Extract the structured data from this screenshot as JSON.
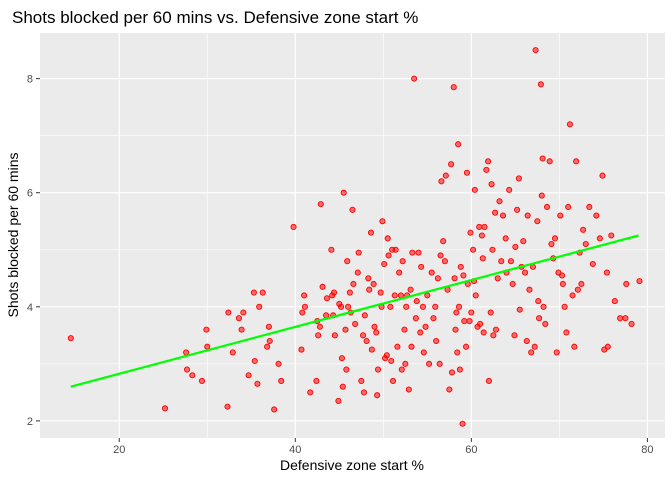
{
  "chart_data": {
    "type": "scatter",
    "title": "Shots blocked per 60 mins vs. Defensive zone start %",
    "xlabel": "Defensive zone start %",
    "ylabel": "Shots blocked per 60 mins",
    "xlim": [
      11,
      82
    ],
    "ylim": [
      1.7,
      8.8
    ],
    "xticks": [
      20,
      40,
      60,
      80
    ],
    "yticks": [
      2,
      4,
      6,
      8
    ],
    "x_tick_labels": [
      "20",
      "40",
      "60",
      "80"
    ],
    "y_tick_labels": [
      "2",
      "4",
      "6",
      "8"
    ],
    "grid": true,
    "panel_color": "#ebebeb",
    "point_color": "#ff0000",
    "trend_color": "#00ff00",
    "trend_line": {
      "x": [
        14.5,
        79
      ],
      "y": [
        2.6,
        5.25
      ]
    },
    "points": [
      [
        14.5,
        3.45
      ],
      [
        25.2,
        2.22
      ],
      [
        27.6,
        3.2
      ],
      [
        27.7,
        2.9
      ],
      [
        28.3,
        2.8
      ],
      [
        29.4,
        2.7
      ],
      [
        29.9,
        3.6
      ],
      [
        30,
        3.3
      ],
      [
        32.3,
        2.25
      ],
      [
        32.4,
        3.9
      ],
      [
        32.9,
        3.2
      ],
      [
        33.6,
        3.8
      ],
      [
        33.9,
        3.6
      ],
      [
        34.1,
        3.9
      ],
      [
        34.7,
        2.8
      ],
      [
        35.3,
        4.25
      ],
      [
        35.4,
        3.05
      ],
      [
        35.7,
        2.65
      ],
      [
        35.9,
        4.0
      ],
      [
        36.3,
        4.25
      ],
      [
        36.8,
        3.3
      ],
      [
        37,
        3.65
      ],
      [
        37.1,
        3.4
      ],
      [
        37.6,
        2.2
      ],
      [
        38.1,
        3.0
      ],
      [
        38.4,
        2.7
      ],
      [
        39.8,
        5.4
      ],
      [
        40.7,
        3.25
      ],
      [
        40.8,
        3.9
      ],
      [
        41,
        4.2
      ],
      [
        41.1,
        4.0
      ],
      [
        41.7,
        2.5
      ],
      [
        42.4,
        2.7
      ],
      [
        42.5,
        3.75
      ],
      [
        42.6,
        3.5
      ],
      [
        42.8,
        3.65
      ],
      [
        42.9,
        5.8
      ],
      [
        43.1,
        4.35
      ],
      [
        43.5,
        3.85
      ],
      [
        43.6,
        4.15
      ],
      [
        44.1,
        5.0
      ],
      [
        44.2,
        4.2
      ],
      [
        44.3,
        3.85
      ],
      [
        44.4,
        4.25
      ],
      [
        44.5,
        3.5
      ],
      [
        44.9,
        2.35
      ],
      [
        45,
        4.05
      ],
      [
        45.2,
        4.0
      ],
      [
        45.3,
        3.1
      ],
      [
        45.4,
        2.6
      ],
      [
        45.5,
        6.0
      ],
      [
        45.7,
        3.6
      ],
      [
        45.8,
        2.9
      ],
      [
        45.9,
        4.8
      ],
      [
        46,
        4.0
      ],
      [
        46.2,
        4.25
      ],
      [
        46.3,
        3.9
      ],
      [
        46.5,
        5.7
      ],
      [
        46.6,
        4.4
      ],
      [
        46.8,
        3.7
      ],
      [
        47.1,
        4.6
      ],
      [
        47.2,
        4.95
      ],
      [
        47.5,
        2.7
      ],
      [
        47.7,
        3.5
      ],
      [
        47.8,
        2.5
      ],
      [
        47.9,
        3.85
      ],
      [
        48.1,
        3.4
      ],
      [
        48.3,
        4.5
      ],
      [
        48.4,
        4.3
      ],
      [
        48.6,
        5.3
      ],
      [
        48.7,
        3.25
      ],
      [
        48.9,
        4.4
      ],
      [
        49,
        3.65
      ],
      [
        49.2,
        3.55
      ],
      [
        49.3,
        2.45
      ],
      [
        49.4,
        2.9
      ],
      [
        49.7,
        4.25
      ],
      [
        49.8,
        4.0
      ],
      [
        49.9,
        5.5
      ],
      [
        50.1,
        4.75
      ],
      [
        50.2,
        3.1
      ],
      [
        50.4,
        3.15
      ],
      [
        50.5,
        5.2
      ],
      [
        50.6,
        4.9
      ],
      [
        50.8,
        4.0
      ],
      [
        50.9,
        3.05
      ],
      [
        51,
        5.0
      ],
      [
        51.1,
        2.7
      ],
      [
        51.3,
        4.2
      ],
      [
        51.4,
        5.0
      ],
      [
        51.6,
        3.3
      ],
      [
        51.8,
        4.6
      ],
      [
        52,
        4.2
      ],
      [
        52.1,
        2.9
      ],
      [
        52.2,
        4.8
      ],
      [
        52.4,
        3.6
      ],
      [
        52.5,
        3.0
      ],
      [
        52.6,
        4.0
      ],
      [
        52.7,
        4.2
      ],
      [
        52.9,
        2.55
      ],
      [
        53.1,
        4.3
      ],
      [
        53.2,
        3.3
      ],
      [
        53.3,
        4.95
      ],
      [
        53.5,
        8.0
      ],
      [
        53.7,
        3.8
      ],
      [
        53.8,
        4.1
      ],
      [
        54,
        4.95
      ],
      [
        54.2,
        3.55
      ],
      [
        54.3,
        4.7
      ],
      [
        54.5,
        4.0
      ],
      [
        54.6,
        3.2
      ],
      [
        54.8,
        3.65
      ],
      [
        55,
        4.2
      ],
      [
        55.2,
        3.0
      ],
      [
        55.5,
        4.6
      ],
      [
        55.7,
        3.8
      ],
      [
        55.9,
        4.0
      ],
      [
        56,
        3.4
      ],
      [
        56.2,
        4.5
      ],
      [
        56.4,
        3.0
      ],
      [
        56.5,
        4.9
      ],
      [
        56.6,
        6.2
      ],
      [
        56.8,
        5.15
      ],
      [
        57,
        4.8
      ],
      [
        57.1,
        6.3
      ],
      [
        57.3,
        4.3
      ],
      [
        57.5,
        2.55
      ],
      [
        57.7,
        6.5
      ],
      [
        57.8,
        2.85
      ],
      [
        58,
        7.85
      ],
      [
        58.1,
        4.5
      ],
      [
        58.2,
        3.6
      ],
      [
        58.3,
        3.9
      ],
      [
        58.4,
        3.2
      ],
      [
        58.5,
        6.85
      ],
      [
        58.6,
        4.0
      ],
      [
        58.7,
        2.9
      ],
      [
        58.8,
        4.7
      ],
      [
        59,
        1.95
      ],
      [
        59.1,
        4.55
      ],
      [
        59.2,
        3.75
      ],
      [
        59.4,
        3.3
      ],
      [
        59.5,
        6.35
      ],
      [
        59.6,
        4.4
      ],
      [
        59.8,
        3.75
      ],
      [
        59.9,
        5.3
      ],
      [
        60,
        3.9
      ],
      [
        60.2,
        5.0
      ],
      [
        60.3,
        4.45
      ],
      [
        60.4,
        6.05
      ],
      [
        60.5,
        4.2
      ],
      [
        60.7,
        3.65
      ],
      [
        60.9,
        5.4
      ],
      [
        61,
        3.7
      ],
      [
        61.2,
        5.25
      ],
      [
        61.3,
        4.85
      ],
      [
        61.4,
        3.55
      ],
      [
        61.5,
        5.4
      ],
      [
        61.7,
        6.4
      ],
      [
        61.9,
        6.55
      ],
      [
        62,
        2.7
      ],
      [
        62.2,
        3.9
      ],
      [
        62.3,
        6.15
      ],
      [
        62.4,
        5.0
      ],
      [
        62.5,
        3.5
      ],
      [
        62.7,
        5.65
      ],
      [
        62.8,
        3.6
      ],
      [
        63,
        4.5
      ],
      [
        63.2,
        5.85
      ],
      [
        63.4,
        4.8
      ],
      [
        63.6,
        5.6
      ],
      [
        63.9,
        5.2
      ],
      [
        64,
        4.6
      ],
      [
        64.3,
        6.05
      ],
      [
        64.5,
        4.8
      ],
      [
        64.7,
        4.4
      ],
      [
        64.9,
        3.5
      ],
      [
        65,
        5.05
      ],
      [
        65.2,
        5.7
      ],
      [
        65.4,
        6.25
      ],
      [
        65.5,
        3.95
      ],
      [
        65.7,
        4.7
      ],
      [
        65.9,
        5.15
      ],
      [
        66.1,
        4.6
      ],
      [
        66.3,
        3.4
      ],
      [
        66.4,
        5.6
      ],
      [
        66.6,
        4.3
      ],
      [
        66.8,
        3.2
      ],
      [
        67,
        4.7
      ],
      [
        67.2,
        3.3
      ],
      [
        67.3,
        8.5
      ],
      [
        67.5,
        5.5
      ],
      [
        67.6,
        4.1
      ],
      [
        67.7,
        3.8
      ],
      [
        67.9,
        7.9
      ],
      [
        68,
        5.95
      ],
      [
        68.1,
        6.6
      ],
      [
        68.2,
        4.0
      ],
      [
        68.4,
        3.7
      ],
      [
        68.6,
        5.75
      ],
      [
        68.9,
        6.55
      ],
      [
        69.1,
        5.1
      ],
      [
        69.3,
        4.85
      ],
      [
        69.5,
        5.2
      ],
      [
        69.7,
        3.2
      ],
      [
        69.9,
        4.6
      ],
      [
        70.1,
        5.6
      ],
      [
        70.3,
        4.55
      ],
      [
        70.4,
        4.4
      ],
      [
        70.6,
        4.0
      ],
      [
        70.8,
        3.55
      ],
      [
        71,
        5.75
      ],
      [
        71.2,
        7.2
      ],
      [
        71.5,
        4.2
      ],
      [
        71.7,
        3.3
      ],
      [
        71.9,
        6.55
      ],
      [
        72.1,
        4.3
      ],
      [
        72.3,
        4.95
      ],
      [
        72.5,
        4.4
      ],
      [
        72.7,
        5.35
      ],
      [
        73,
        5.1
      ],
      [
        73.4,
        5.75
      ],
      [
        73.8,
        4.75
      ],
      [
        74.2,
        5.6
      ],
      [
        74.6,
        5.2
      ],
      [
        74.9,
        6.3
      ],
      [
        75.1,
        3.25
      ],
      [
        75.4,
        4.6
      ],
      [
        75.5,
        3.3
      ],
      [
        75.9,
        5.25
      ],
      [
        76.3,
        4.1
      ],
      [
        76.9,
        3.8
      ],
      [
        77.5,
        3.8
      ],
      [
        77.6,
        4.4
      ],
      [
        78.2,
        3.7
      ],
      [
        79.1,
        4.45
      ]
    ]
  }
}
